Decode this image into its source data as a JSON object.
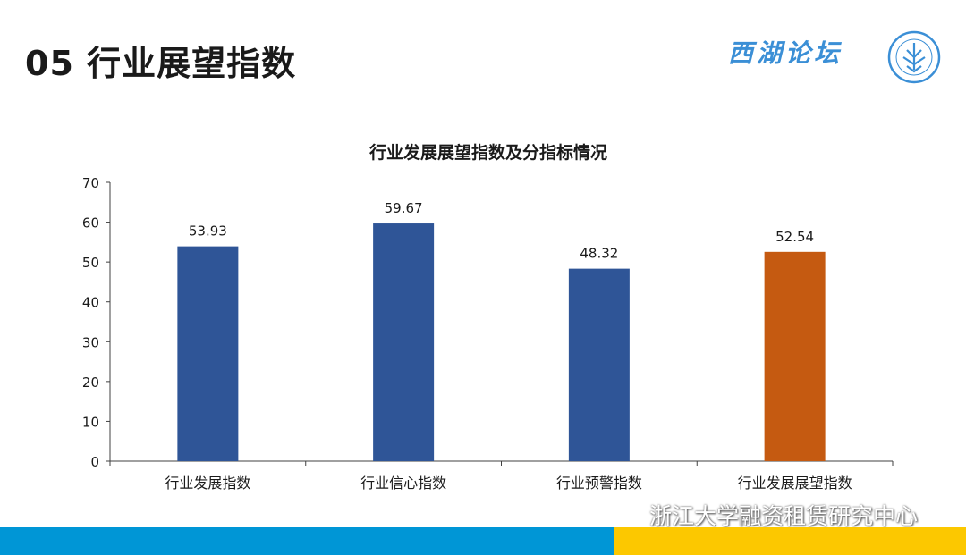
{
  "slide": {
    "title": "05  行业展望指数",
    "brand": "西湖论坛",
    "watermark": "浙江大学融资租赁研究中心"
  },
  "colors": {
    "primary_bar": "#2f5597",
    "highlight_bar": "#c55a11",
    "footer_blue": "#0096d6",
    "footer_yellow": "#fcc800",
    "brand_blue": "#3b8fd6"
  },
  "icons": {
    "logo": "forum-seal-logo",
    "watermark": "wechat-icon"
  },
  "chart_data": {
    "type": "bar",
    "title": "行业发展展望指数及分指标情况",
    "categories": [
      "行业发展指数",
      "行业信心指数",
      "行业预警指数",
      "行业发展展望指数"
    ],
    "values": [
      53.93,
      59.67,
      48.32,
      52.54
    ],
    "value_labels": [
      "53.93",
      "59.67",
      "48.32",
      "52.54"
    ],
    "highlight_index": 3,
    "yticks": [
      0,
      10,
      20,
      30,
      40,
      50,
      60,
      70
    ],
    "ylim": [
      0,
      70
    ],
    "grid": false,
    "legend": "none"
  }
}
